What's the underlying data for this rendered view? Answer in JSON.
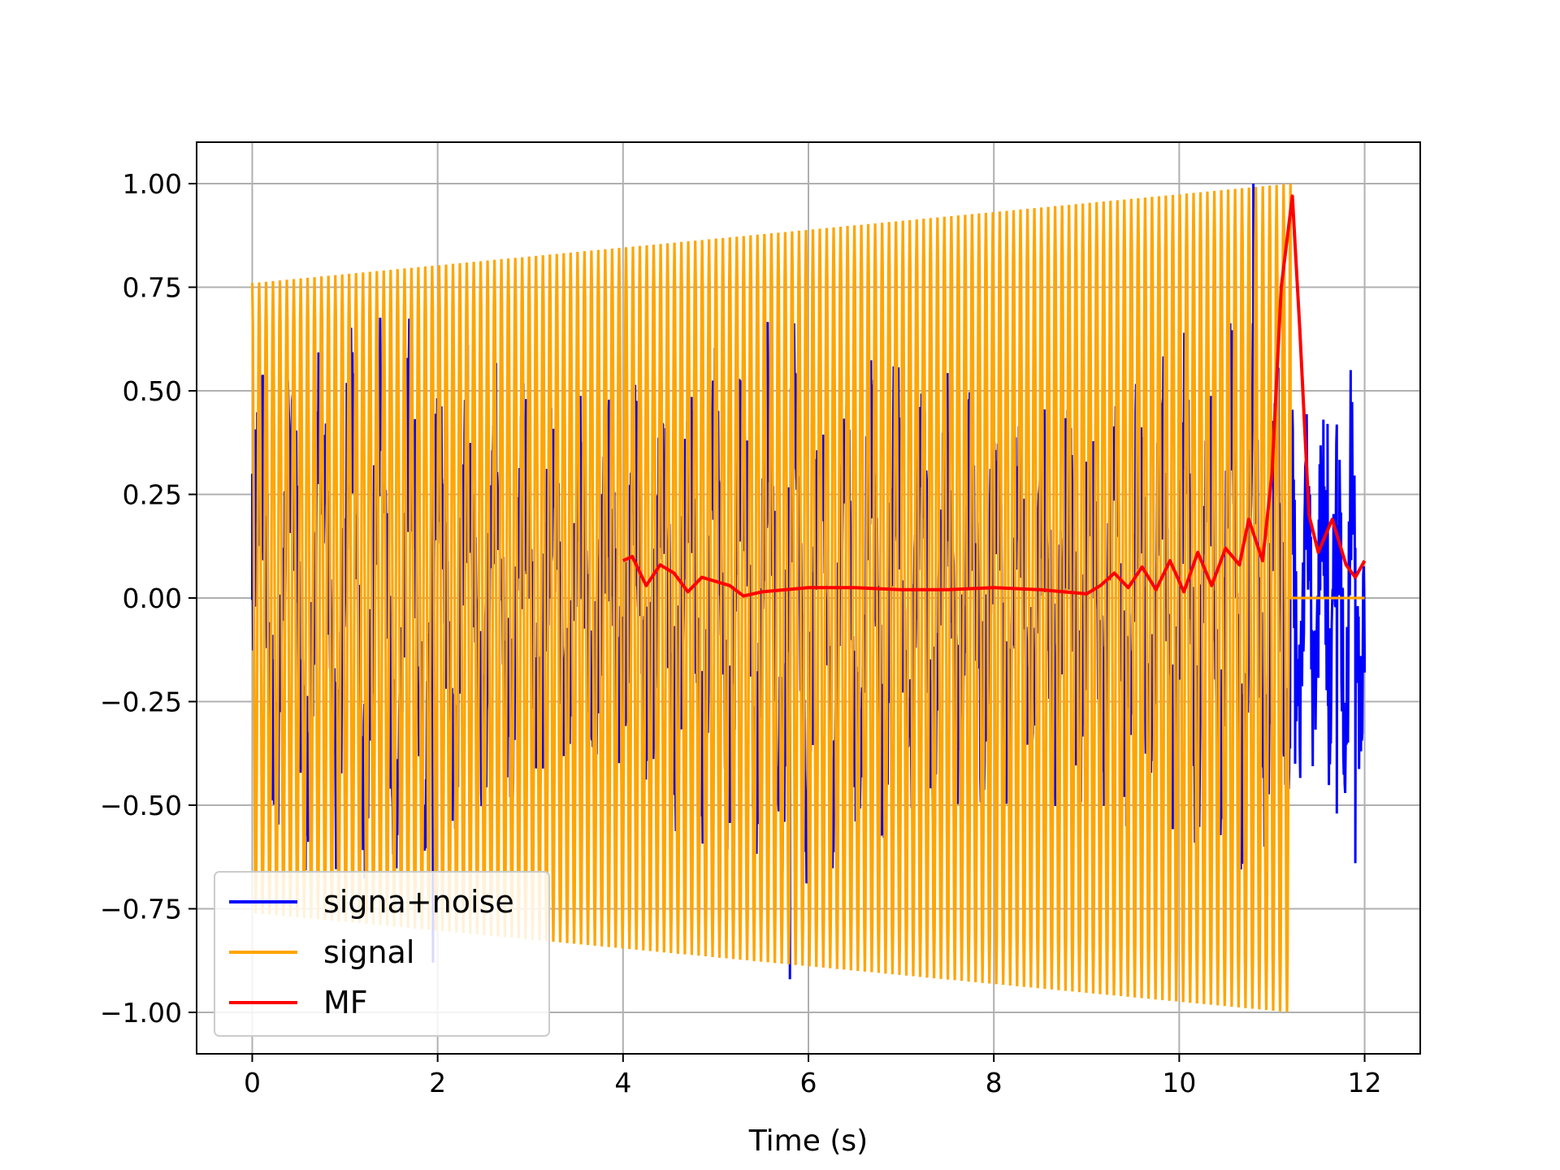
{
  "chart_data": {
    "type": "line",
    "title": "",
    "xlabel": "Time (s)",
    "ylabel": "",
    "xlim": [
      -0.6,
      12.6
    ],
    "ylim": [
      -1.1,
      1.1
    ],
    "xticks": [
      0,
      2,
      4,
      6,
      8,
      10,
      12
    ],
    "xtick_labels": [
      "0",
      "2",
      "4",
      "6",
      "8",
      "10",
      "12"
    ],
    "yticks": [
      1.0,
      0.75,
      0.5,
      0.25,
      0.0,
      -0.25,
      -0.5,
      -0.75,
      -1.0
    ],
    "ytick_labels": [
      "1.00",
      "0.75",
      "0.50",
      "0.25",
      "0.00",
      "−0.25",
      "−0.50",
      "−0.75",
      "−1.00"
    ],
    "grid": true,
    "legend_position": "lower-left",
    "series": [
      {
        "name": "signa+noise",
        "color": "#0000ff",
        "description_points": [
          [
            0.0,
            0.3
          ],
          [
            0.45,
            0.52
          ],
          [
            1.95,
            -0.88
          ],
          [
            5.8,
            -0.92
          ],
          [
            10.8,
            1.0
          ],
          [
            11.25,
            -0.4
          ],
          [
            11.4,
            0.27
          ],
          [
            11.6,
            0.42
          ],
          [
            11.7,
            -0.52
          ],
          [
            11.85,
            0.55
          ],
          [
            11.9,
            -0.64
          ],
          [
            12.0,
            -0.18
          ]
        ]
      },
      {
        "name": "signal",
        "color": "#ffa500",
        "envelope_start": [
          0.0,
          0.76
        ],
        "envelope_end": [
          11.2,
          1.0
        ],
        "chirp_end": 11.2,
        "after_chirp_value": 0.0
      },
      {
        "name": "MF",
        "color": "#ff0000",
        "x": [
          4.0,
          4.1,
          4.25,
          4.4,
          4.55,
          4.7,
          4.85,
          5.0,
          5.15,
          5.3,
          5.5,
          6.0,
          6.5,
          7.0,
          7.5,
          8.0,
          8.5,
          9.0,
          9.15,
          9.3,
          9.45,
          9.6,
          9.75,
          9.9,
          10.05,
          10.2,
          10.35,
          10.5,
          10.65,
          10.75,
          10.9,
          11.0,
          11.1,
          11.22,
          11.3,
          11.4,
          11.5,
          11.65,
          11.8,
          11.9,
          12.0
        ],
        "y": [
          0.09,
          0.1,
          0.03,
          0.08,
          0.06,
          0.015,
          0.05,
          0.04,
          0.03,
          0.005,
          0.015,
          0.025,
          0.025,
          0.02,
          0.02,
          0.025,
          0.02,
          0.01,
          0.03,
          0.06,
          0.025,
          0.075,
          0.02,
          0.09,
          0.015,
          0.11,
          0.03,
          0.12,
          0.08,
          0.19,
          0.09,
          0.3,
          0.75,
          0.97,
          0.65,
          0.2,
          0.11,
          0.19,
          0.08,
          0.05,
          0.09
        ]
      }
    ]
  }
}
